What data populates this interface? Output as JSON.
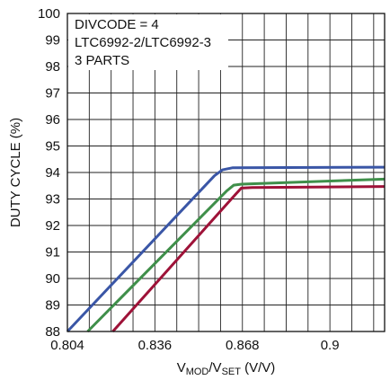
{
  "chart_data": {
    "type": "line",
    "title": "",
    "xlabel": {
      "base1": "V",
      "sub1": "MOD",
      "sep": "/V",
      "sub2": "SET",
      "unit": " (V/V)"
    },
    "ylabel": "DUTY CYCLE (%)",
    "xlim": [
      0.804,
      0.92
    ],
    "ylim": [
      88,
      100
    ],
    "x_ticks": [
      0.804,
      0.836,
      0.868,
      0.9
    ],
    "x_tick_labels": [
      "0.804",
      "0.836",
      "0.868",
      "0.9"
    ],
    "x_minor_step": 0.008,
    "y_ticks": [
      88,
      89,
      90,
      91,
      92,
      93,
      94,
      95,
      96,
      97,
      98,
      99,
      100
    ],
    "grid": true,
    "annotation": [
      "DIVCODE = 4",
      "LTC6992-2/LTC6992-3",
      "3 PARTS"
    ],
    "series": [
      {
        "color": "#3a56a6",
        "x": [
          0.804,
          0.8578,
          0.8607,
          0.8645,
          0.92
        ],
        "y": [
          88.0,
          93.88,
          94.1,
          94.18,
          94.2
        ]
      },
      {
        "color": "#3f8f4a",
        "x": [
          0.8114,
          0.8622,
          0.8648,
          0.8677,
          0.92
        ],
        "y": [
          88.0,
          93.3,
          93.52,
          93.56,
          93.75
        ]
      },
      {
        "color": "#9e1238",
        "x": [
          0.8206,
          0.8657,
          0.8676,
          0.8716,
          0.92
        ],
        "y": [
          88.0,
          93.2,
          93.41,
          93.43,
          93.47
        ]
      }
    ]
  }
}
